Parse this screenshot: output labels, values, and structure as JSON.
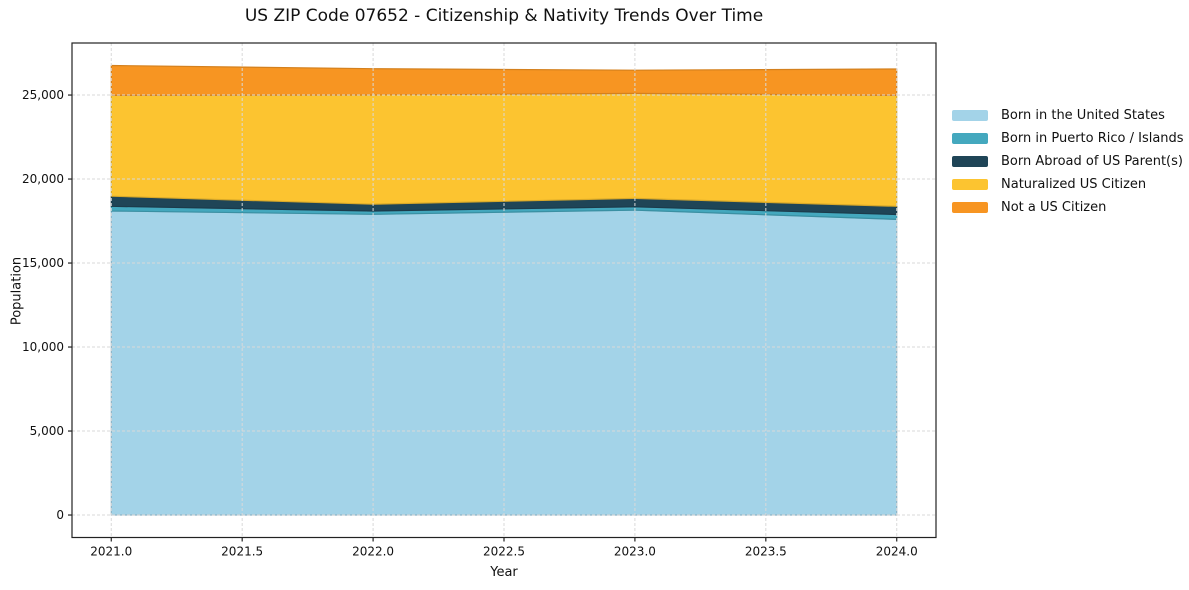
{
  "figure": {
    "title": "US ZIP Code 07652 - Citizenship & Nativity Trends Over Time"
  },
  "chart_data": {
    "type": "area",
    "stacked": true,
    "title": "US ZIP Code 07652 - Citizenship & Nativity Trends Over Time",
    "xlabel": "Year",
    "ylabel": "Population",
    "x": [
      2021,
      2022,
      2023,
      2024
    ],
    "series": [
      {
        "name": "Born in the United States",
        "color": "#a3d3e8",
        "values": [
          18100,
          17900,
          18150,
          17600
        ]
      },
      {
        "name": "Born in Puerto Rico / Islands",
        "color": "#44a8be",
        "values": [
          280,
          200,
          200,
          290
        ]
      },
      {
        "name": "Born Abroad of US Parent(s)",
        "color": "#1f4557",
        "values": [
          600,
          400,
          500,
          490
        ]
      },
      {
        "name": "Naturalized US Citizen",
        "color": "#fcc430",
        "values": [
          6000,
          6500,
          6250,
          6600
        ]
      },
      {
        "name": "Not a US Citizen",
        "color": "#f79522",
        "values": [
          1780,
          1570,
          1380,
          1570
        ]
      }
    ],
    "cumulative_totals": {
      "2021": 26760,
      "2022": 26570,
      "2023": 26480,
      "2024": 26550
    },
    "xlim": [
      2020.85,
      2024.15
    ],
    "ylim": [
      -1338,
      28098
    ],
    "xticks": [
      2021.0,
      2021.5,
      2022.0,
      2022.5,
      2023.0,
      2023.5,
      2024.0
    ],
    "yticks": [
      0,
      5000,
      10000,
      15000,
      20000,
      25000
    ],
    "grid": true,
    "grid_color": "#d9d9d9",
    "spine_color": "#222222",
    "legend_position": "right of plot, no frame"
  }
}
